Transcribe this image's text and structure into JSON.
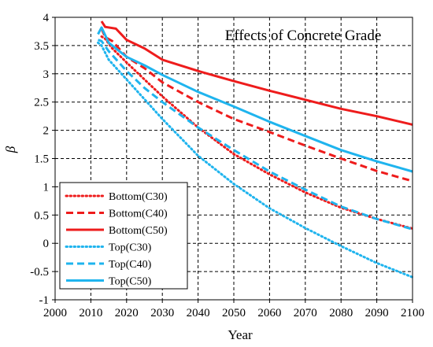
{
  "chart_data": {
    "type": "line",
    "title": "Effects of Concrete Grade",
    "xlabel": "Year",
    "ylabel": "β",
    "xlim": [
      2000,
      2100
    ],
    "ylim": [
      -1,
      4
    ],
    "xticks": [
      2000,
      2010,
      2020,
      2030,
      2040,
      2050,
      2060,
      2070,
      2080,
      2090,
      2100
    ],
    "yticks": [
      -1,
      -0.5,
      0,
      0.5,
      1,
      1.5,
      2,
      2.5,
      3,
      3.5,
      4
    ],
    "xtick_labels": [
      "2000",
      "2010",
      "2020",
      "2030",
      "2040",
      "2050",
      "2060",
      "2070",
      "2080",
      "2090",
      "2100"
    ],
    "ytick_labels": [
      "-1",
      "-0.5",
      "0",
      "0.5",
      "1",
      "1.5",
      "2",
      "2.5",
      "3",
      "3.5",
      "4"
    ],
    "grid": true,
    "legend_position": "bottom-left",
    "colors": {
      "bottom": "#ee1c1c",
      "top": "#1fb4ee"
    },
    "series": [
      {
        "name": "Bottom(C30)",
        "color": "#ee1c1c",
        "dash": "dotted",
        "x": [
          2013,
          2014,
          2016,
          2020,
          2025,
          2030,
          2040,
          2050,
          2060,
          2070,
          2080,
          2090,
          2100
        ],
        "y": [
          3.66,
          3.62,
          3.45,
          3.2,
          2.9,
          2.6,
          2.05,
          1.58,
          1.22,
          0.9,
          0.63,
          0.43,
          0.26
        ]
      },
      {
        "name": "Bottom(C40)",
        "color": "#ee1c1c",
        "dash": "dashed",
        "x": [
          2013,
          2014,
          2016,
          2020,
          2025,
          2030,
          2040,
          2050,
          2060,
          2070,
          2080,
          2090,
          2100
        ],
        "y": [
          3.8,
          3.65,
          3.58,
          3.3,
          3.1,
          2.85,
          2.5,
          2.2,
          1.97,
          1.73,
          1.5,
          1.28,
          1.1
        ]
      },
      {
        "name": "Bottom(C50)",
        "color": "#ee1c1c",
        "dash": "solid",
        "x": [
          2013,
          2014,
          2017,
          2020,
          2025,
          2030,
          2040,
          2050,
          2060,
          2070,
          2080,
          2090,
          2100
        ],
        "y": [
          3.93,
          3.83,
          3.8,
          3.6,
          3.45,
          3.25,
          3.05,
          2.87,
          2.7,
          2.54,
          2.38,
          2.25,
          2.1
        ]
      },
      {
        "name": "Top(C30)",
        "color": "#1fb4ee",
        "dash": "dotted",
        "x": [
          2012,
          2013,
          2015,
          2020,
          2025,
          2030,
          2040,
          2050,
          2060,
          2070,
          2080,
          2090,
          2100
        ],
        "y": [
          3.55,
          3.5,
          3.25,
          2.9,
          2.55,
          2.2,
          1.55,
          1.05,
          0.62,
          0.27,
          -0.05,
          -0.35,
          -0.6
        ]
      },
      {
        "name": "Top(C40)",
        "color": "#1fb4ee",
        "dash": "dashed",
        "x": [
          2012,
          2013,
          2015,
          2020,
          2025,
          2030,
          2040,
          2050,
          2060,
          2070,
          2080,
          2090,
          2100
        ],
        "y": [
          3.6,
          3.58,
          3.4,
          3.05,
          2.75,
          2.5,
          2.05,
          1.65,
          1.27,
          0.95,
          0.65,
          0.43,
          0.25
        ]
      },
      {
        "name": "Top(C50)",
        "color": "#1fb4ee",
        "dash": "solid",
        "x": [
          2012,
          2013,
          2015,
          2020,
          2025,
          2030,
          2040,
          2050,
          2060,
          2070,
          2080,
          2090,
          2100
        ],
        "y": [
          3.7,
          3.82,
          3.55,
          3.3,
          3.15,
          2.98,
          2.68,
          2.42,
          2.15,
          1.9,
          1.65,
          1.45,
          1.27
        ]
      }
    ]
  }
}
